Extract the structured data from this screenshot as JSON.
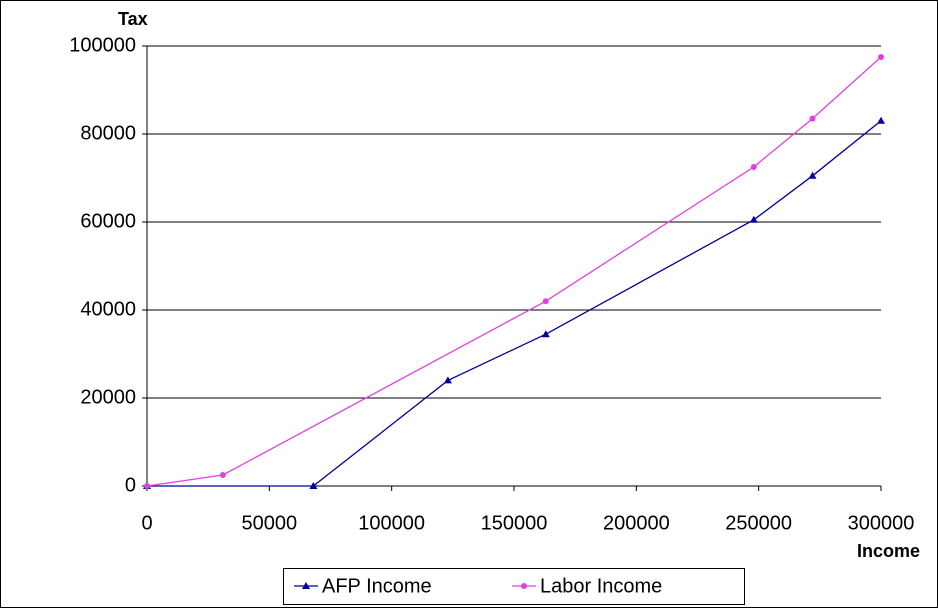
{
  "chart_data": {
    "type": "line",
    "ylabel": "Tax",
    "xlabel": "Income",
    "xlim": [
      0,
      300000
    ],
    "xticks": [
      0,
      50000,
      100000,
      150000,
      200000,
      250000,
      300000
    ],
    "ylim": [
      0,
      100000
    ],
    "yticks": [
      0,
      20000,
      40000,
      60000,
      80000,
      100000
    ],
    "grid": true,
    "legend": "bottom",
    "series": [
      {
        "name": "AFP Income",
        "color": "#000099",
        "marker": "triangle",
        "x": [
          0,
          68000,
          123000,
          163000,
          248000,
          272000,
          300000
        ],
        "values": [
          0,
          0,
          24000,
          34500,
          60500,
          70500,
          83000
        ]
      },
      {
        "name": "Labor Income",
        "color": "#e040e0",
        "marker": "circle",
        "x": [
          0,
          31000,
          163000,
          248000,
          272000,
          300000
        ],
        "values": [
          0,
          2500,
          42000,
          72500,
          83500,
          97500
        ]
      }
    ]
  }
}
